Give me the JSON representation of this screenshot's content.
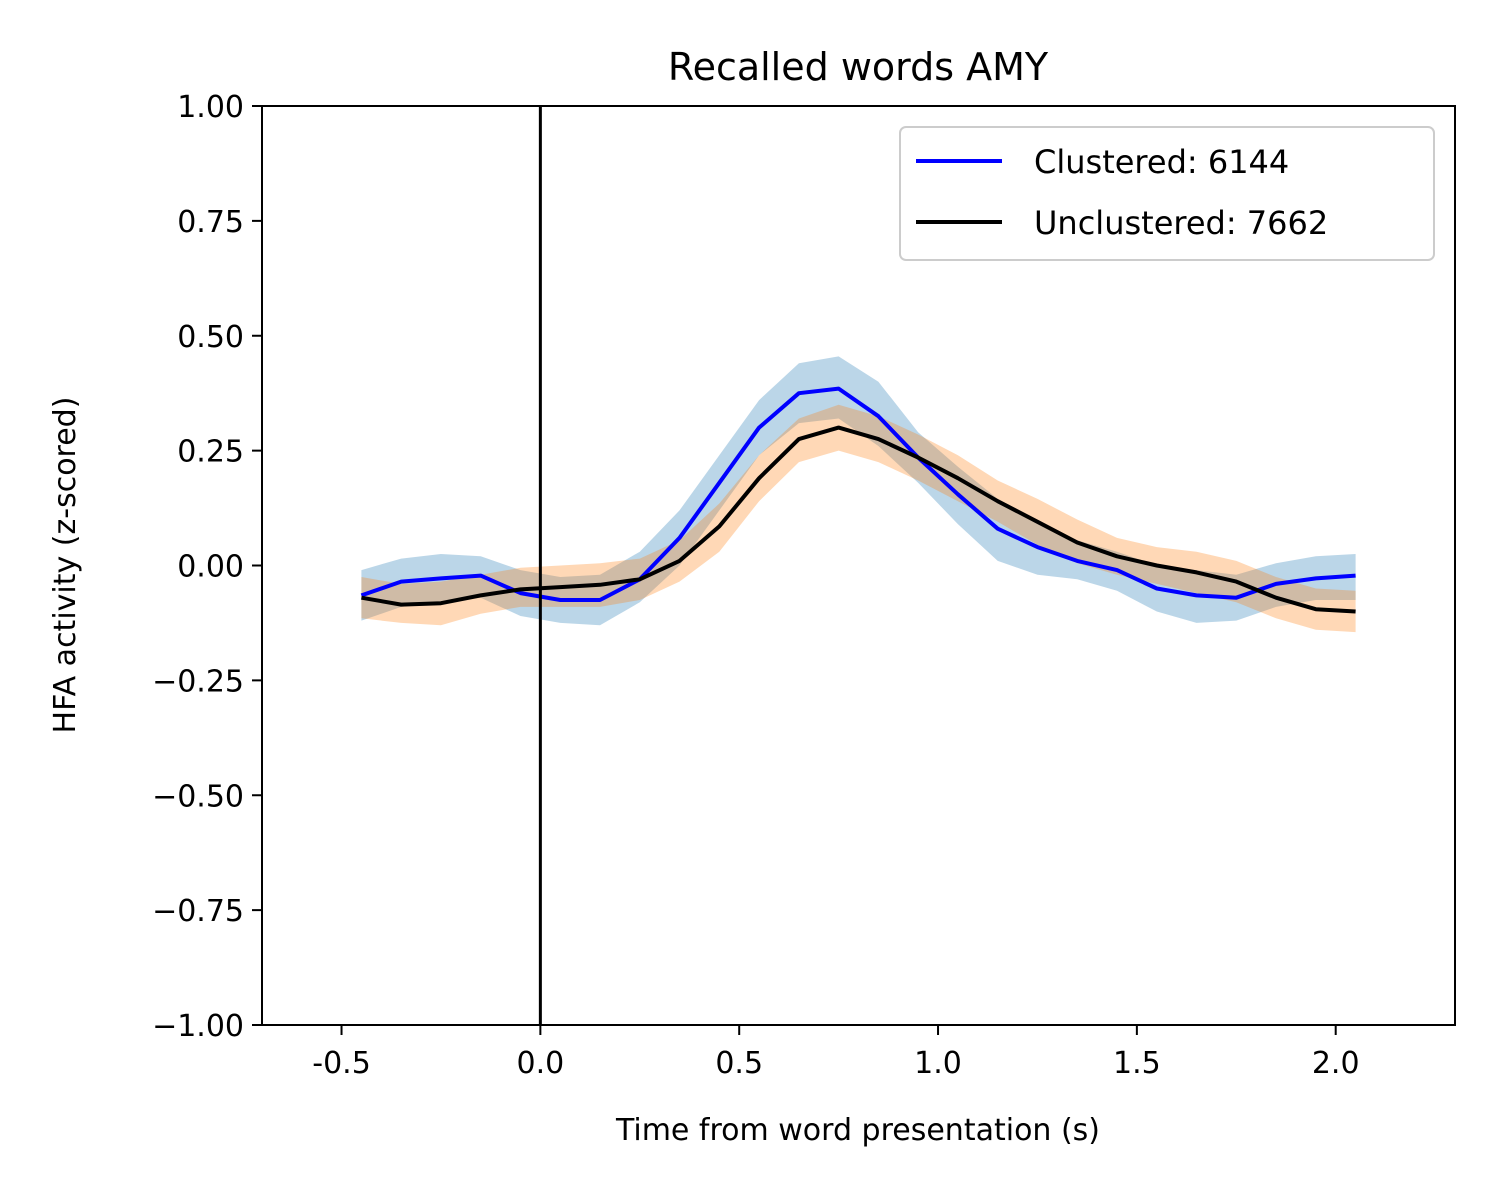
{
  "chart_data": {
    "type": "line",
    "title": "Recalled words AMY",
    "xlabel": "Time from word presentation (s)",
    "ylabel": "HFA activity (z-scored)",
    "xlim": [
      -0.7,
      2.3
    ],
    "ylim": [
      -1.0,
      1.0
    ],
    "xticks": [
      -0.5,
      0.0,
      0.5,
      1.0,
      1.5,
      2.0
    ],
    "xtick_labels": [
      "-0.5",
      "0.0",
      "0.5",
      "1.0",
      "1.5",
      "2.0"
    ],
    "yticks": [
      1.0,
      0.75,
      0.5,
      0.25,
      0.0,
      -0.25,
      -0.5,
      -0.75,
      -1.0
    ],
    "ytick_labels": [
      "1.00",
      "0.75",
      "0.50",
      "0.25",
      "0.00",
      "−0.25",
      "−0.50",
      "−0.75",
      "−1.00"
    ],
    "vline_x": 0.0,
    "grid": false,
    "legend_position": "top-right",
    "x": [
      -0.45,
      -0.35,
      -0.25,
      -0.15,
      -0.05,
      0.05,
      0.15,
      0.25,
      0.35,
      0.45,
      0.55,
      0.65,
      0.75,
      0.85,
      0.95,
      1.05,
      1.15,
      1.25,
      1.35,
      1.45,
      1.55,
      1.65,
      1.75,
      1.85,
      1.95,
      2.05
    ],
    "series": [
      {
        "name": "Clustered: 6144",
        "color": "#0000ff",
        "band_color": "#1f77b4",
        "values": [
          -0.065,
          -0.035,
          -0.028,
          -0.022,
          -0.06,
          -0.075,
          -0.075,
          -0.03,
          0.06,
          0.18,
          0.3,
          0.375,
          0.385,
          0.325,
          0.235,
          0.155,
          0.08,
          0.04,
          0.01,
          -0.01,
          -0.05,
          -0.065,
          -0.07,
          -0.04,
          -0.028,
          -0.022
        ],
        "lower": [
          -0.12,
          -0.09,
          -0.08,
          -0.07,
          -0.11,
          -0.125,
          -0.13,
          -0.08,
          0.0,
          0.12,
          0.24,
          0.31,
          0.32,
          0.26,
          0.18,
          0.09,
          0.01,
          -0.02,
          -0.03,
          -0.055,
          -0.1,
          -0.125,
          -0.12,
          -0.09,
          -0.075,
          -0.075
        ],
        "upper": [
          -0.01,
          0.015,
          0.025,
          0.02,
          -0.01,
          -0.025,
          -0.02,
          0.03,
          0.12,
          0.24,
          0.36,
          0.44,
          0.455,
          0.4,
          0.29,
          0.215,
          0.145,
          0.095,
          0.055,
          0.03,
          0.0,
          -0.01,
          -0.02,
          0.005,
          0.02,
          0.025
        ]
      },
      {
        "name": "Unclustered: 7662",
        "color": "#000000",
        "band_color": "#ff7f0e",
        "values": [
          -0.07,
          -0.085,
          -0.082,
          -0.065,
          -0.052,
          -0.047,
          -0.042,
          -0.03,
          0.01,
          0.085,
          0.19,
          0.275,
          0.3,
          0.275,
          0.235,
          0.19,
          0.14,
          0.095,
          0.05,
          0.02,
          0.0,
          -0.015,
          -0.035,
          -0.07,
          -0.095,
          -0.1
        ],
        "lower": [
          -0.115,
          -0.125,
          -0.13,
          -0.105,
          -0.09,
          -0.09,
          -0.09,
          -0.075,
          -0.035,
          0.03,
          0.14,
          0.225,
          0.25,
          0.225,
          0.185,
          0.14,
          0.095,
          0.045,
          0.005,
          -0.02,
          -0.04,
          -0.06,
          -0.08,
          -0.115,
          -0.14,
          -0.145
        ],
        "upper": [
          -0.025,
          -0.04,
          -0.035,
          -0.02,
          -0.005,
          0.0,
          0.005,
          0.015,
          0.055,
          0.135,
          0.24,
          0.32,
          0.35,
          0.325,
          0.285,
          0.24,
          0.185,
          0.145,
          0.1,
          0.06,
          0.04,
          0.03,
          0.01,
          -0.025,
          -0.05,
          -0.055
        ]
      }
    ]
  }
}
